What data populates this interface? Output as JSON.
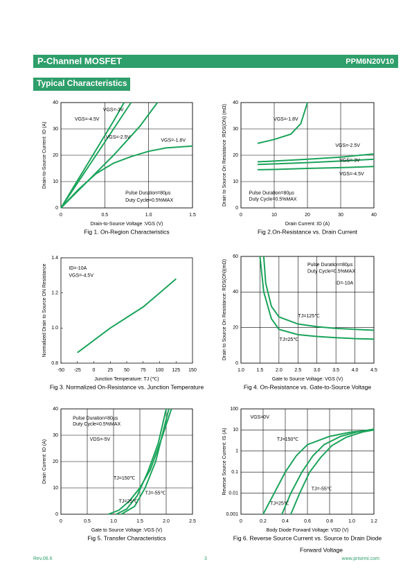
{
  "header": {
    "title": "P-Channel MOSFET",
    "part": "PPM6N20V10"
  },
  "section_title": "Typical Characteristics",
  "footer": {
    "revision": "Rev.06.6",
    "page": "3",
    "url": "www.prisemi.com"
  },
  "chart_data": [
    {
      "type": "line",
      "caption": [
        "Fig 1. On-Region Characteristics"
      ],
      "x_label": "Drain-to-Source Voltage :VGS (V)",
      "y_label": "Drain-to-Source Current: ID (A)",
      "xlim": [
        0,
        1.5
      ],
      "xticks": [
        0,
        0.5,
        {
          "value": 1,
          "label": "1.0"
        },
        1.5
      ],
      "ylim": [
        0,
        40
      ],
      "yticks": [
        0,
        10,
        20,
        30,
        40
      ],
      "grid": true,
      "annotations": [
        "VGS=-4.5V",
        "VGS=-3V",
        "VGS=-2.5V",
        "VGS=-1.8V",
        "Pulse Duration=80µs",
        "Duty Cycle=0.5%MAX"
      ],
      "series": [
        {
          "color": "#1aa35a",
          "x": [
            0,
            0.2,
            0.4,
            0.6,
            0.72
          ],
          "values": [
            0,
            11,
            22,
            33,
            40
          ]
        },
        {
          "color": "#1aa35a",
          "x": [
            0,
            0.2,
            0.4,
            0.6,
            0.8
          ],
          "values": [
            0,
            10,
            20,
            30,
            40
          ]
        },
        {
          "color": "#1aa35a",
          "x": [
            0,
            0.3,
            0.6,
            0.9,
            1.1
          ],
          "values": [
            0,
            10,
            20,
            31,
            40
          ]
        },
        {
          "color": "#1aa35a",
          "x": [
            0,
            0.2,
            0.4,
            0.6,
            0.8,
            1.0,
            1.2,
            1.5
          ],
          "values": [
            0,
            7,
            13,
            17,
            19.5,
            21.5,
            22.8,
            23.5
          ]
        }
      ]
    },
    {
      "type": "line",
      "caption": [
        "Fig 2.On-Resistance vs. Drain Current"
      ],
      "x_label": "Drain Current :ID (A)",
      "y_label": "Drain to Source On Resistance :RDS(ON) (mΩ)",
      "xlim": [
        0,
        40
      ],
      "xticks": [
        0,
        10,
        20,
        30,
        40
      ],
      "ylim": [
        0,
        40
      ],
      "yticks": [
        0,
        10,
        20,
        30,
        40
      ],
      "grid": true,
      "annotations": [
        "VGS=-1.8V",
        "VGS=-2.5V",
        "VGS=-3V",
        "VGS=-4.5V",
        "Pulse Duration=80µs",
        "Duty Cycle=0.5%MAX"
      ],
      "series": [
        {
          "color": "#1aa35a",
          "x": [
            5,
            10,
            15,
            18,
            20
          ],
          "values": [
            24.5,
            26,
            28,
            32,
            40
          ]
        },
        {
          "color": "#1aa35a",
          "x": [
            5,
            10,
            20,
            30,
            40
          ],
          "values": [
            17.5,
            17.8,
            18.5,
            19.3,
            20.5
          ]
        },
        {
          "color": "#1aa35a",
          "x": [
            5,
            10,
            20,
            30,
            40
          ],
          "values": [
            16.5,
            16.7,
            17.2,
            17.8,
            18.5
          ]
        },
        {
          "color": "#1aa35a",
          "x": [
            5,
            10,
            20,
            30,
            40
          ],
          "values": [
            14.5,
            14.6,
            15,
            15.3,
            15.7
          ]
        }
      ]
    },
    {
      "type": "line",
      "caption": [
        "Fig 3. Normalized On-Resistance vs. Junction Temperature"
      ],
      "x_label": "Junction Temperature: TJ (℃)",
      "y_label": "Normalized Drain to Source ON Resistance",
      "xlim": [
        -50,
        150
      ],
      "xticks": [
        -50,
        -25,
        0,
        25,
        50,
        75,
        100,
        125,
        150
      ],
      "ylim": [
        0.8,
        1.4
      ],
      "yticks": [
        0.8,
        {
          "value": 1,
          "label": "1.0"
        },
        1.2,
        1.4
      ],
      "grid": false,
      "annotations": [
        "ID=-10A",
        "VGS=-4.5V"
      ],
      "series": [
        {
          "color": "#1aa35a",
          "x": [
            -25,
            0,
            25,
            50,
            75,
            100,
            125
          ],
          "values": [
            0.86,
            0.93,
            1.0,
            1.06,
            1.12,
            1.2,
            1.28
          ]
        }
      ]
    },
    {
      "type": "line",
      "caption": [
        "Fig 4. On-Resistance vs. Gate-to-Source Voltage"
      ],
      "x_label": "Gate to Source Voltage: VGS (V)",
      "y_label": "Drain to Source On Resistance: RDS(ON)(mΩ)",
      "xlim": [
        1,
        4.5
      ],
      "xticks": [
        {
          "value": 1,
          "label": "1.0"
        },
        1.5,
        {
          "value": 2,
          "label": "2.0"
        },
        2.5,
        {
          "value": 3,
          "label": "3.0"
        },
        3.5,
        {
          "value": 4,
          "label": "4.0"
        },
        4.5
      ],
      "ylim": [
        0,
        60
      ],
      "yticks": [
        0,
        20,
        40,
        60
      ],
      "grid": true,
      "annotations": [
        "Pulse Duration=80µs",
        "Duty Cycle=0.5%MAX",
        "ID=-10A",
        "TJ=125℃",
        "TJ=25℃"
      ],
      "series": [
        {
          "color": "#1aa35a",
          "x": [
            1.6,
            1.65,
            1.8,
            2.0,
            2.5,
            3.0,
            3.5,
            4.0,
            4.5
          ],
          "values": [
            60,
            45,
            32,
            26,
            22,
            20.5,
            19.5,
            19,
            18.5
          ]
        },
        {
          "color": "#1aa35a",
          "x": [
            1.5,
            1.6,
            1.8,
            2.0,
            2.5,
            3.0,
            3.5,
            4.0,
            4.5
          ],
          "values": [
            60,
            40,
            25,
            19,
            16,
            15,
            14.3,
            13.8,
            13.5
          ]
        }
      ]
    },
    {
      "type": "line",
      "caption": [
        "Fig 5. Transfer Characteristics"
      ],
      "x_label": "Gate to Source Voltage :VGS (V)",
      "y_label": "Drain Current: ID (A)",
      "xlim": [
        0,
        2.5
      ],
      "xticks": [
        0,
        0.5,
        {
          "value": 1,
          "label": "1.0"
        },
        1.5,
        {
          "value": 2,
          "label": "2.0"
        },
        2.5
      ],
      "ylim": [
        0,
        40
      ],
      "yticks": [
        0,
        10,
        20,
        30,
        40
      ],
      "grid": true,
      "annotations": [
        "Pulse Duration=80µs",
        "Duty Cycle=0.5%MAX",
        "VDS=-5V",
        "TJ=150℃",
        "TJ=-55℃",
        "TJ=25℃"
      ],
      "series": [
        {
          "color": "#1aa35a",
          "x": [
            0.9,
            1.1,
            1.3,
            1.5,
            1.7,
            1.9,
            2.1
          ],
          "values": [
            0,
            1.5,
            5,
            10,
            17,
            28,
            40
          ]
        },
        {
          "color": "#1aa35a",
          "x": [
            1.05,
            1.25,
            1.45,
            1.65,
            1.85,
            2.0
          ],
          "values": [
            0,
            2,
            7,
            16,
            27,
            40
          ]
        },
        {
          "color": "#1aa35a",
          "x": [
            1.15,
            1.4,
            1.6,
            1.8,
            1.95,
            2.05
          ],
          "values": [
            0,
            3,
            10,
            20,
            32,
            40
          ]
        }
      ]
    },
    {
      "type": "line",
      "caption": [
        "Fig 6. Reverse Source Current vs. Source to Drain Diode",
        "Forward Voltage"
      ],
      "x_label": "Body Diode Forward Voltage: VSD (V)",
      "y_label": "Reverse Source Current: IS (A)",
      "xlim": [
        0,
        1.2
      ],
      "xticks": [
        0,
        0.2,
        0.4,
        0.6,
        0.8,
        {
          "value": 1,
          "label": "1.0"
        },
        1.2
      ],
      "ylim": [
        0.001,
        100
      ],
      "yticks": [
        0.001,
        0.01,
        0.1,
        1,
        10,
        100
      ],
      "log_y": true,
      "grid": true,
      "annotations": [
        "VGS=0V",
        "TJ=150℃",
        "TJ=-55℃",
        "TJ=25℃"
      ],
      "series": [
        {
          "color": "#1aa35a",
          "x": [
            0.2,
            0.3,
            0.4,
            0.5,
            0.6,
            0.8,
            1.0,
            1.2
          ],
          "values": [
            0.001,
            0.01,
            0.1,
            0.6,
            2,
            5,
            8,
            10
          ]
        },
        {
          "color": "#1aa35a",
          "x": [
            0.37,
            0.45,
            0.55,
            0.65,
            0.75,
            0.9,
            1.05,
            1.2
          ],
          "values": [
            0.001,
            0.01,
            0.1,
            0.6,
            2,
            5,
            8,
            11
          ]
        },
        {
          "color": "#1aa35a",
          "x": [
            0.45,
            0.53,
            0.62,
            0.72,
            0.82,
            0.95,
            1.1,
            1.2
          ],
          "values": [
            0.001,
            0.01,
            0.1,
            0.5,
            1.8,
            4.5,
            8,
            10
          ]
        }
      ]
    }
  ]
}
